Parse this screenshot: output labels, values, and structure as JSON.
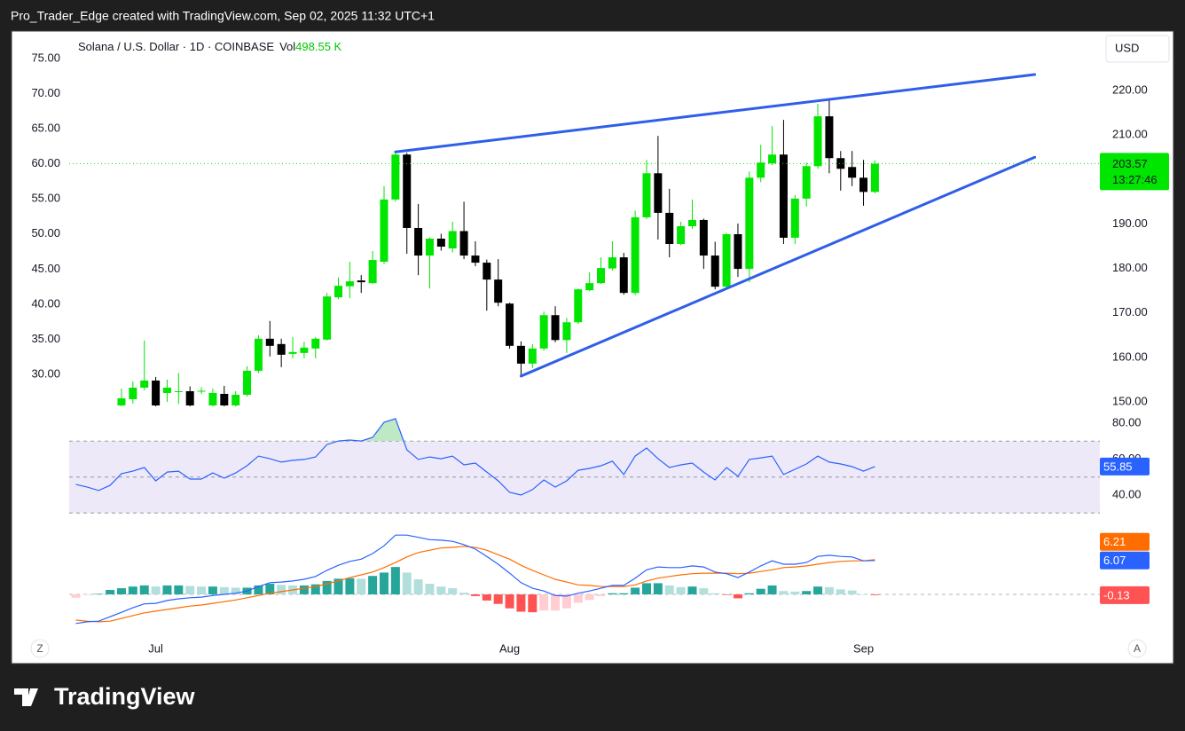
{
  "header": {
    "credit": "Pro_Trader_Edge created with TradingView.com, Sep 02, 2025 11:32 UTC+1"
  },
  "footer": {
    "logo": "TradingView"
  },
  "controls": {
    "left": "Z",
    "right": "A"
  },
  "chart_data": [
    {
      "type": "candlestick",
      "title": "Solana / U.S. Dollar · 1D · COINBASE",
      "volume_label": "Vol",
      "volume": "498.55 K",
      "currency": "USD",
      "countdown": "13:27:46",
      "categories": [
        null,
        null,
        null,
        null,
        null,
        null,
        null,
        "Jul",
        null,
        null,
        null,
        null,
        null,
        null,
        null,
        null,
        null,
        null,
        null,
        null,
        null,
        null,
        null,
        null,
        null,
        null,
        null,
        null,
        null,
        null,
        null,
        null,
        null,
        null,
        null,
        null,
        null,
        null,
        "Aug",
        null,
        null,
        null,
        null,
        null,
        null,
        null,
        null,
        null,
        null,
        null,
        null,
        null,
        null,
        null,
        null,
        null,
        null,
        null,
        null,
        null,
        null,
        null,
        null,
        null,
        null,
        null,
        null,
        null,
        null,
        "Sep",
        null
      ],
      "open": [
        null,
        null,
        null,
        null,
        149.2,
        150.6,
        153.2,
        154.8,
        152,
        152.2,
        152.4,
        152.4,
        149.2,
        151.8,
        149.2,
        151.6,
        157,
        164.2,
        163,
        160.8,
        161,
        162,
        164,
        173.5,
        176,
        177.3,
        176.7,
        181.5,
        195.5,
        205.6,
        189.1,
        182.9,
        186.7,
        184.5,
        188.4,
        182.9,
        181.3,
        177.5,
        172.1,
        162.6,
        158.6,
        162,
        169.5,
        163.9,
        167.9,
        175.1,
        176.7,
        180,
        182.5,
        174.5,
        191.5,
        201.4,
        192.5,
        185.5,
        189.5,
        190.9,
        182.9,
        175.9,
        187.7,
        179.9,
        200.4,
        203.6,
        205.6,
        186.9,
        195.7,
        203,
        214.2,
        204.8,
        202.8,
        200.4,
        197.2
      ],
      "high": [
        null,
        null,
        null,
        null,
        153,
        154.6,
        163.8,
        155.6,
        155,
        156.5,
        153.5,
        153.3,
        153,
        153.6,
        152.4,
        158,
        165,
        168.2,
        164.2,
        164.6,
        163.5,
        164.6,
        174.5,
        178,
        181.5,
        178.5,
        183.9,
        198.5,
        206,
        206,
        194.5,
        187,
        187.8,
        190.5,
        195,
        186.1,
        182,
        182.1,
        172.3,
        163.6,
        163,
        170.3,
        171.5,
        168.9,
        175.5,
        179.1,
        182.5,
        186.1,
        183.5,
        193,
        204.4,
        209.8,
        197.9,
        190.5,
        195.5,
        191.2,
        186,
        188,
        190.1,
        201.8,
        207.8,
        212,
        213.4,
        196.5,
        203.8,
        217,
        217.8,
        206.4,
        206.4,
        204.4,
        204.3
      ],
      "low": [
        null,
        null,
        null,
        null,
        149,
        149.6,
        152.6,
        149,
        150,
        149.5,
        149,
        151.8,
        149,
        149,
        149,
        151.2,
        156.5,
        160.2,
        157.8,
        159.8,
        159.8,
        159.8,
        163.8,
        173.1,
        173.3,
        174.5,
        176.5,
        181,
        195,
        183.3,
        178.5,
        175.5,
        184,
        183.6,
        182.1,
        180.5,
        170.5,
        171.5,
        162,
        155.6,
        157.6,
        161.5,
        163.4,
        161,
        167.5,
        174.9,
        176.5,
        179.5,
        174.1,
        174,
        191.1,
        186.5,
        182.5,
        185.2,
        188.9,
        179.9,
        175.3,
        175.3,
        178.1,
        176.9,
        199.4,
        203.2,
        185.5,
        185.5,
        193.9,
        202.4,
        201.4,
        197.5,
        198.5,
        194.1,
        196.9
      ],
      "close": [
        null,
        null,
        null,
        null,
        150.8,
        153.2,
        154.8,
        149.2,
        153.2,
        152.4,
        149.2,
        152.5,
        152,
        149.2,
        151.6,
        157,
        164.2,
        162.6,
        160.6,
        161.2,
        162.2,
        164.2,
        173.7,
        176.1,
        177.1,
        176.9,
        181.9,
        195.5,
        205.6,
        189.1,
        182.9,
        186.7,
        184.9,
        188.4,
        182.9,
        181.3,
        177.5,
        172.3,
        162.6,
        158.6,
        162,
        169.5,
        163.9,
        167.9,
        175.3,
        176.7,
        180.1,
        182.5,
        174.5,
        191.5,
        201.4,
        192.5,
        185.5,
        189.5,
        190.9,
        182.9,
        175.9,
        187.7,
        179.9,
        200.4,
        203.8,
        205.6,
        186.9,
        195.7,
        203,
        214.2,
        204.8,
        202.4,
        200.4,
        197.2,
        203.57
      ],
      "up_color": "#00e600",
      "down_color": "#000000",
      "ylim": [
        147.61,
        233.37
      ],
      "yticks": [
        {
          "value": 150,
          "label": "150.00"
        },
        {
          "value": 160,
          "label": "160.00"
        },
        {
          "value": 170,
          "label": "170.00"
        },
        {
          "value": 180,
          "label": "180.00"
        },
        {
          "value": 190,
          "label": "190.00"
        },
        {
          "value": 200,
          "label": "200.00"
        },
        {
          "value": 210,
          "label": "210.00"
        },
        {
          "value": 220,
          "label": "220.00"
        }
      ],
      "y2lim": [
        24.56,
        78.92
      ],
      "y2ticks": [
        {
          "value": 30,
          "label": "30.00"
        },
        {
          "value": 35,
          "label": "35.00"
        },
        {
          "value": 40,
          "label": "40.00"
        },
        {
          "value": 45,
          "label": "45.00"
        },
        {
          "value": 50,
          "label": "50.00"
        },
        {
          "value": 55,
          "label": "55.00"
        },
        {
          "value": 60,
          "label": "60.00"
        },
        {
          "value": 65,
          "label": "65.00"
        },
        {
          "value": 70,
          "label": "70.00"
        },
        {
          "value": 75,
          "label": "75.00"
        }
      ],
      "last_price_line": true,
      "trendline_color": "#2f5ee8",
      "trendlines": [
        {
          "x": [
            28,
            84
          ],
          "y": [
            206.2,
            223.6
          ]
        },
        {
          "x": [
            39,
            84
          ],
          "y": [
            155.8,
            205
          ]
        }
      ]
    },
    {
      "type": "rsi",
      "color": "#2962ff",
      "band_color": "#ede9f8",
      "values": [
        45.9,
        44.4,
        42.5,
        45.4,
        51.9,
        53.3,
        55.3,
        47.9,
        52.8,
        53.3,
        48.9,
        48.9,
        52.3,
        49.4,
        52.3,
        56.3,
        61.7,
        60.2,
        58.3,
        59.3,
        59.8,
        61.2,
        68.1,
        70.1,
        70.6,
        70.1,
        72.1,
        80.5,
        82.5,
        65.2,
        59.8,
        61.2,
        60.2,
        61.7,
        56.8,
        57.8,
        52.8,
        47.9,
        41.5,
        40,
        43,
        48.4,
        44.4,
        47.9,
        53.8,
        54.8,
        56.3,
        58.8,
        51.4,
        61.7,
        66.2,
        60.2,
        55.3,
        56.8,
        57.8,
        52.8,
        48.4,
        55.3,
        50.4,
        59.8,
        60.7,
        61.7,
        51.4,
        54.3,
        57.3,
        61.7,
        58.3,
        57.3,
        55.8,
        53.3,
        55.85
      ],
      "levels": [
        30,
        50,
        70
      ],
      "ylim": [
        26.67,
        83.46
      ],
      "yticks": [
        {
          "value": 40,
          "label": "40.00"
        },
        {
          "value": 60,
          "label": "60.00"
        },
        {
          "value": 80,
          "label": "80.00"
        }
      ]
    },
    {
      "type": "macd",
      "macd_color": "#2962ff",
      "signal_color": "#ff6d00",
      "hist_colors": [
        "#26a69a",
        "#b2dfdb",
        "#ffcdd2",
        "#ff5252"
      ],
      "macd": [
        -5.2,
        -4.9,
        -4.8,
        -4.0,
        -3.2,
        -2.4,
        -1.7,
        -1.6,
        -1.1,
        -0.8,
        -0.6,
        -0.5,
        -0.2,
        0,
        0.2,
        0.6,
        1.4,
        2.1,
        2.2,
        2.4,
        2.7,
        3.2,
        4.3,
        5.2,
        5.9,
        6.3,
        7.3,
        8.7,
        10.6,
        10.6,
        10.2,
        9.8,
        9.7,
        9.5,
        8.9,
        8.1,
        6.8,
        5.4,
        3.8,
        2.1,
        1.1,
        0.6,
        -0.2,
        -0.3,
        0.2,
        0.6,
        1.1,
        1.6,
        1.6,
        2.9,
        4.4,
        4.9,
        4.8,
        4.8,
        5.1,
        4.9,
        4.0,
        3.7,
        3.0,
        4.0,
        5.1,
        6.0,
        5.4,
        5.4,
        5.7,
        6.8,
        7.0,
        6.8,
        6.7,
        6.0,
        6.07
      ],
      "signal": [
        -4.6,
        -4.8,
        -4.9,
        -4.8,
        -4.3,
        -3.8,
        -3.3,
        -3.0,
        -2.7,
        -2.4,
        -2.1,
        -1.9,
        -1.6,
        -1.3,
        -1.0,
        -0.6,
        -0.2,
        0.2,
        0.5,
        0.8,
        1.1,
        1.4,
        1.9,
        2.4,
        3.0,
        3.5,
        4.0,
        4.8,
        5.7,
        6.7,
        7.5,
        7.9,
        8.3,
        8.4,
        8.6,
        8.4,
        7.9,
        7.1,
        6.3,
        5.2,
        4.3,
        3.5,
        2.7,
        2.2,
        1.7,
        1.6,
        1.4,
        1.4,
        1.4,
        1.7,
        2.4,
        2.9,
        3.2,
        3.5,
        3.7,
        3.8,
        3.8,
        3.8,
        3.7,
        3.8,
        4.1,
        4.4,
        4.8,
        4.9,
        5.1,
        5.4,
        5.7,
        5.9,
        6.0,
        6.0,
        6.21
      ],
      "histogram": [
        -0.6,
        -0.1,
        0.1,
        0.8,
        1.1,
        1.4,
        1.6,
        1.4,
        1.6,
        1.6,
        1.5,
        1.4,
        1.4,
        1.3,
        1.2,
        1.2,
        1.6,
        1.9,
        1.7,
        1.6,
        1.6,
        1.8,
        2.4,
        2.8,
        2.9,
        2.8,
        3.3,
        3.9,
        4.9,
        3.9,
        2.7,
        1.9,
        1.4,
        1.1,
        0.3,
        -0.3,
        -1.1,
        -1.7,
        -2.5,
        -3.1,
        -3.2,
        -2.9,
        -2.9,
        -2.5,
        -1.5,
        -1.0,
        -0.3,
        0.2,
        0.2,
        1.2,
        2.0,
        2.0,
        1.6,
        1.3,
        1.4,
        1.1,
        0.2,
        -0.1,
        -0.7,
        0.2,
        1.0,
        1.6,
        0.6,
        0.5,
        0.6,
        1.4,
        1.3,
        0.9,
        0.7,
        0,
        -0.13
      ],
      "levels": [
        0
      ],
      "ylim": [
        -6.35,
        12.7
      ]
    }
  ]
}
